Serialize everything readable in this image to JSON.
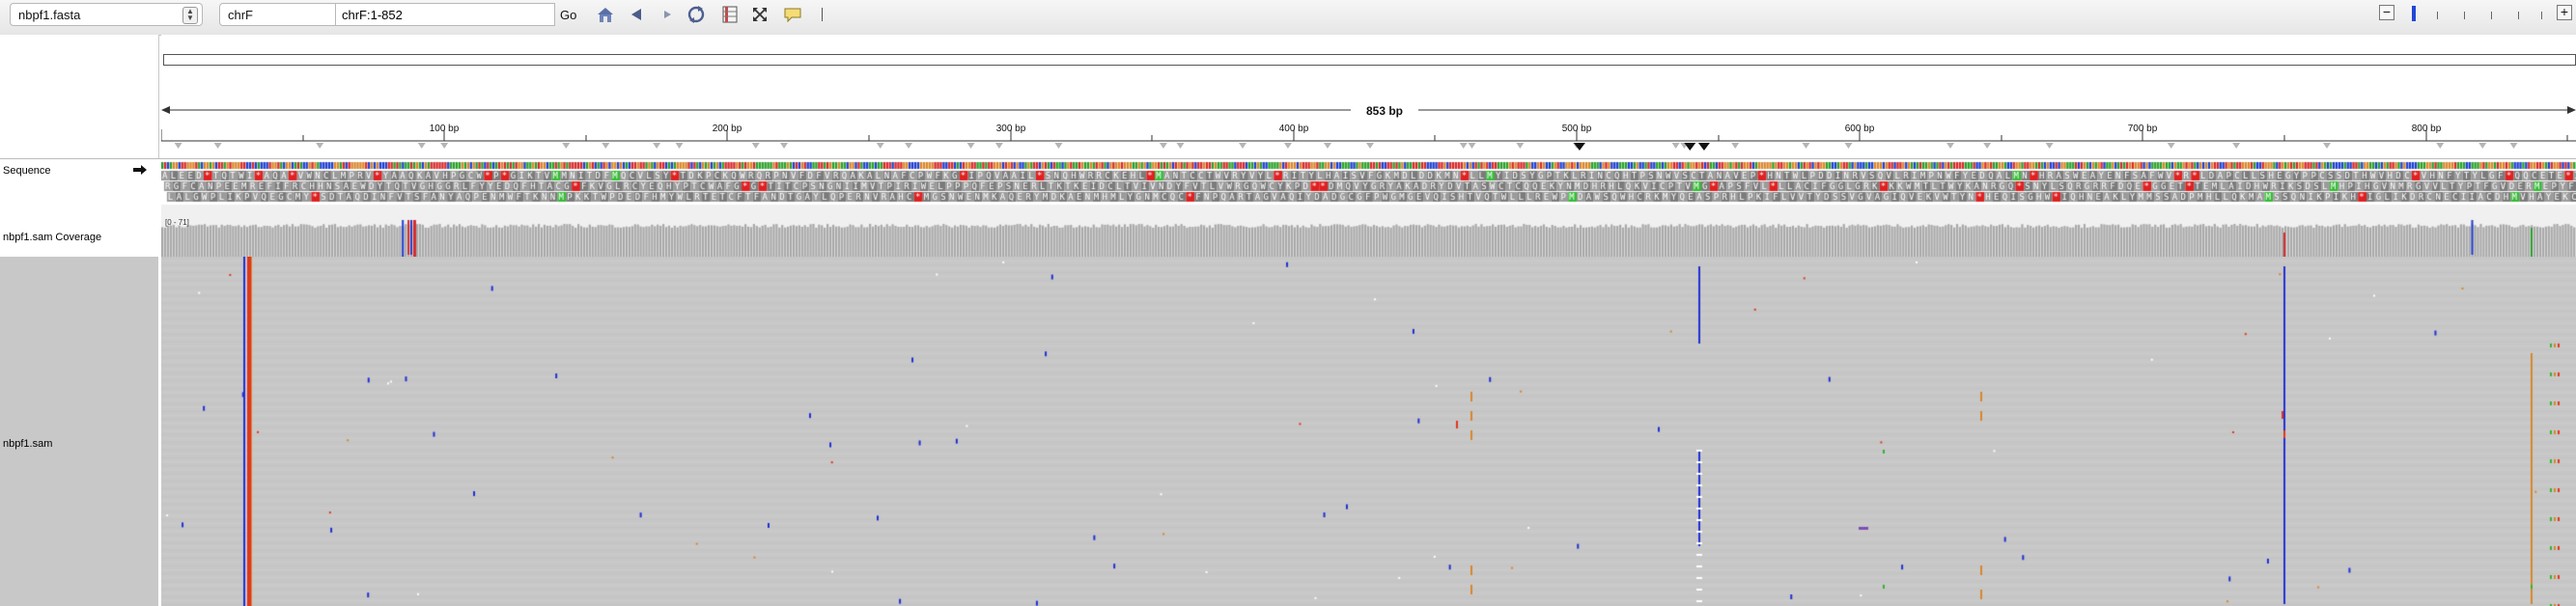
{
  "toolbar": {
    "genome": "nbpf1.fasta",
    "chromosome": "chrF",
    "locus": "chrF:1-852",
    "go_label": "Go"
  },
  "ruler": {
    "span_label": "853 bp",
    "ticks": [
      "100 bp",
      "200 bp",
      "300 bp",
      "400 bp",
      "500 bp",
      "600 bp",
      "700 bp",
      "800 bp"
    ]
  },
  "tracks": {
    "sequence": "Sequence",
    "coverage": "nbpf1.sam Coverage",
    "coverage_range": "[0 - 71]",
    "alignment": "nbpf1.sam"
  },
  "colors": {
    "read": "#c7c7c7",
    "insertion": "#1f2fd6",
    "mismatch_t": "#e0351f",
    "mismatch_g": "#d9862a",
    "mismatch_a": "#2fb52f",
    "stop_codon": "#e02020",
    "start_codon": "#33bb33"
  },
  "icons": [
    "home-icon",
    "back-icon",
    "forward-icon",
    "refresh-icon",
    "region-icon",
    "resize-icon",
    "popup-icon",
    "ruler-icon",
    "zoom-out-icon",
    "zoom-in-icon"
  ]
}
